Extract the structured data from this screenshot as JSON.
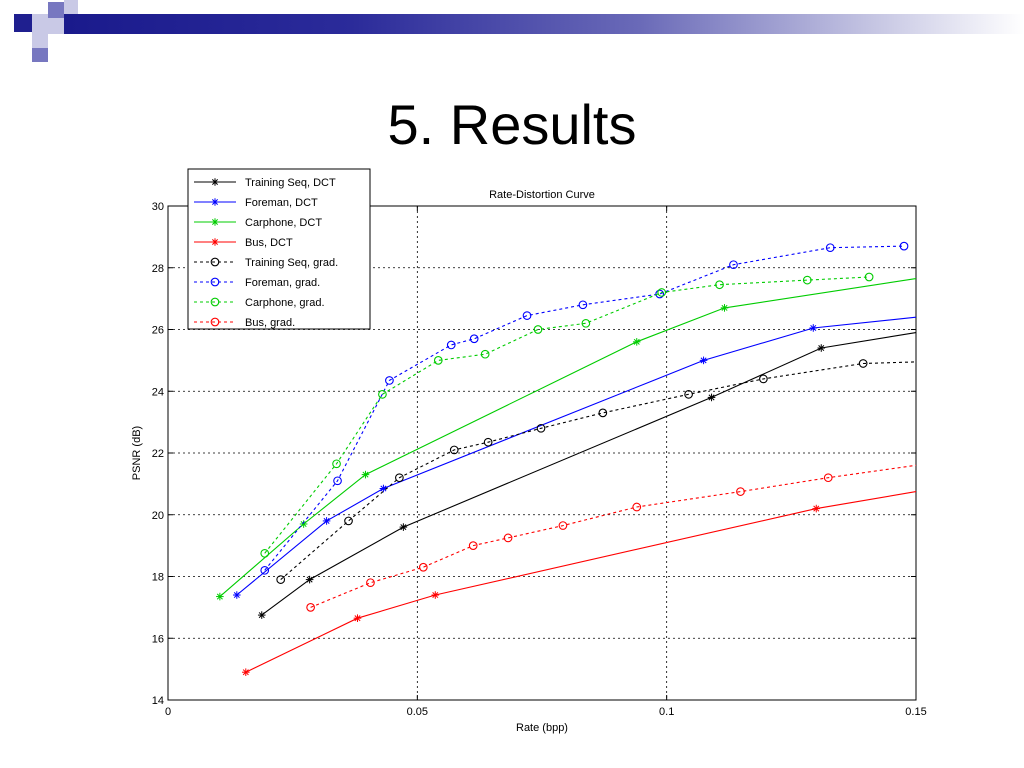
{
  "slide": {
    "title": "5. Results",
    "colors": {
      "deco_dark": "#1f1f8f",
      "deco_mid": "#7777c0",
      "deco_light": "#c9c9e6"
    }
  },
  "chart_data": {
    "type": "line",
    "title": "Rate-Distortion Curve",
    "xlabel": "Rate (bpp)",
    "ylabel": "PSNR (dB)",
    "xlim": [
      0,
      0.15
    ],
    "ylim": [
      14,
      30
    ],
    "xticks": [
      0,
      0.05,
      0.1,
      0.15
    ],
    "xtick_labels": [
      "0",
      "0.05",
      "0.1",
      "0.15"
    ],
    "yticks": [
      14,
      16,
      18,
      20,
      22,
      24,
      26,
      28,
      30
    ],
    "ytick_labels": [
      "14",
      "16",
      "18",
      "20",
      "22",
      "24",
      "26",
      "28",
      "30"
    ],
    "grid": true,
    "legend_position": "top-left",
    "series": [
      {
        "name": "Training Seq, DCT",
        "color": "#000000",
        "style": "solid",
        "marker": "star",
        "x": [
          0.0188,
          0.0284,
          0.0472,
          0.109,
          0.131,
          0.15
        ],
        "y": [
          16.75,
          17.9,
          19.6,
          23.8,
          25.4,
          25.9
        ]
      },
      {
        "name": "Foreman, DCT",
        "color": "#0000ff",
        "style": "solid",
        "marker": "star",
        "x": [
          0.0138,
          0.0318,
          0.0432,
          0.1074,
          0.1294,
          0.15
        ],
        "y": [
          17.4,
          19.8,
          20.85,
          25.0,
          26.05,
          26.4
        ]
      },
      {
        "name": "Carphone, DCT",
        "color": "#00cc00",
        "style": "solid",
        "marker": "star",
        "x": [
          0.0104,
          0.0272,
          0.0396,
          0.094,
          0.1116,
          0.15
        ],
        "y": [
          17.35,
          19.7,
          21.3,
          25.6,
          26.7,
          27.65
        ]
      },
      {
        "name": "Bus, DCT",
        "color": "#ff0000",
        "style": "solid",
        "marker": "star",
        "x": [
          0.0156,
          0.038,
          0.0536,
          0.13,
          0.15
        ],
        "y": [
          14.9,
          16.65,
          17.4,
          20.2,
          20.75
        ]
      },
      {
        "name": "Training Seq, grad.",
        "color": "#000000",
        "style": "dashed",
        "marker": "circle",
        "x": [
          0.0226,
          0.0362,
          0.0464,
          0.0574,
          0.0642,
          0.0748,
          0.0872,
          0.1044,
          0.1194,
          0.1394,
          0.15
        ],
        "y": [
          17.9,
          19.8,
          21.2,
          22.1,
          22.35,
          22.8,
          23.3,
          23.9,
          24.4,
          24.9,
          24.95
        ]
      },
      {
        "name": "Foreman, grad.",
        "color": "#0000ff",
        "style": "dashed",
        "marker": "circle",
        "x": [
          0.0194,
          0.034,
          0.0444,
          0.0568,
          0.0614,
          0.072,
          0.0832,
          0.0986,
          0.1134,
          0.1328,
          0.1476
        ],
        "y": [
          18.2,
          21.1,
          24.35,
          25.5,
          25.7,
          26.45,
          26.8,
          27.15,
          28.1,
          28.65,
          28.7
        ]
      },
      {
        "name": "Carphone, grad.",
        "color": "#00cc00",
        "style": "dashed",
        "marker": "circle",
        "x": [
          0.0194,
          0.0338,
          0.043,
          0.0542,
          0.0636,
          0.0742,
          0.0838,
          0.099,
          0.1106,
          0.1282,
          0.1406
        ],
        "y": [
          18.75,
          21.65,
          23.9,
          25.0,
          25.2,
          26.0,
          26.2,
          27.2,
          27.45,
          27.6,
          27.7
        ]
      },
      {
        "name": "Bus, grad.",
        "color": "#ff0000",
        "style": "dashed",
        "marker": "circle",
        "x": [
          0.0286,
          0.0406,
          0.0512,
          0.0612,
          0.0682,
          0.0792,
          0.094,
          0.1148,
          0.1324,
          0.15
        ],
        "y": [
          17.0,
          17.8,
          18.3,
          19.0,
          19.25,
          19.65,
          20.25,
          20.75,
          21.2,
          21.6
        ]
      }
    ]
  }
}
